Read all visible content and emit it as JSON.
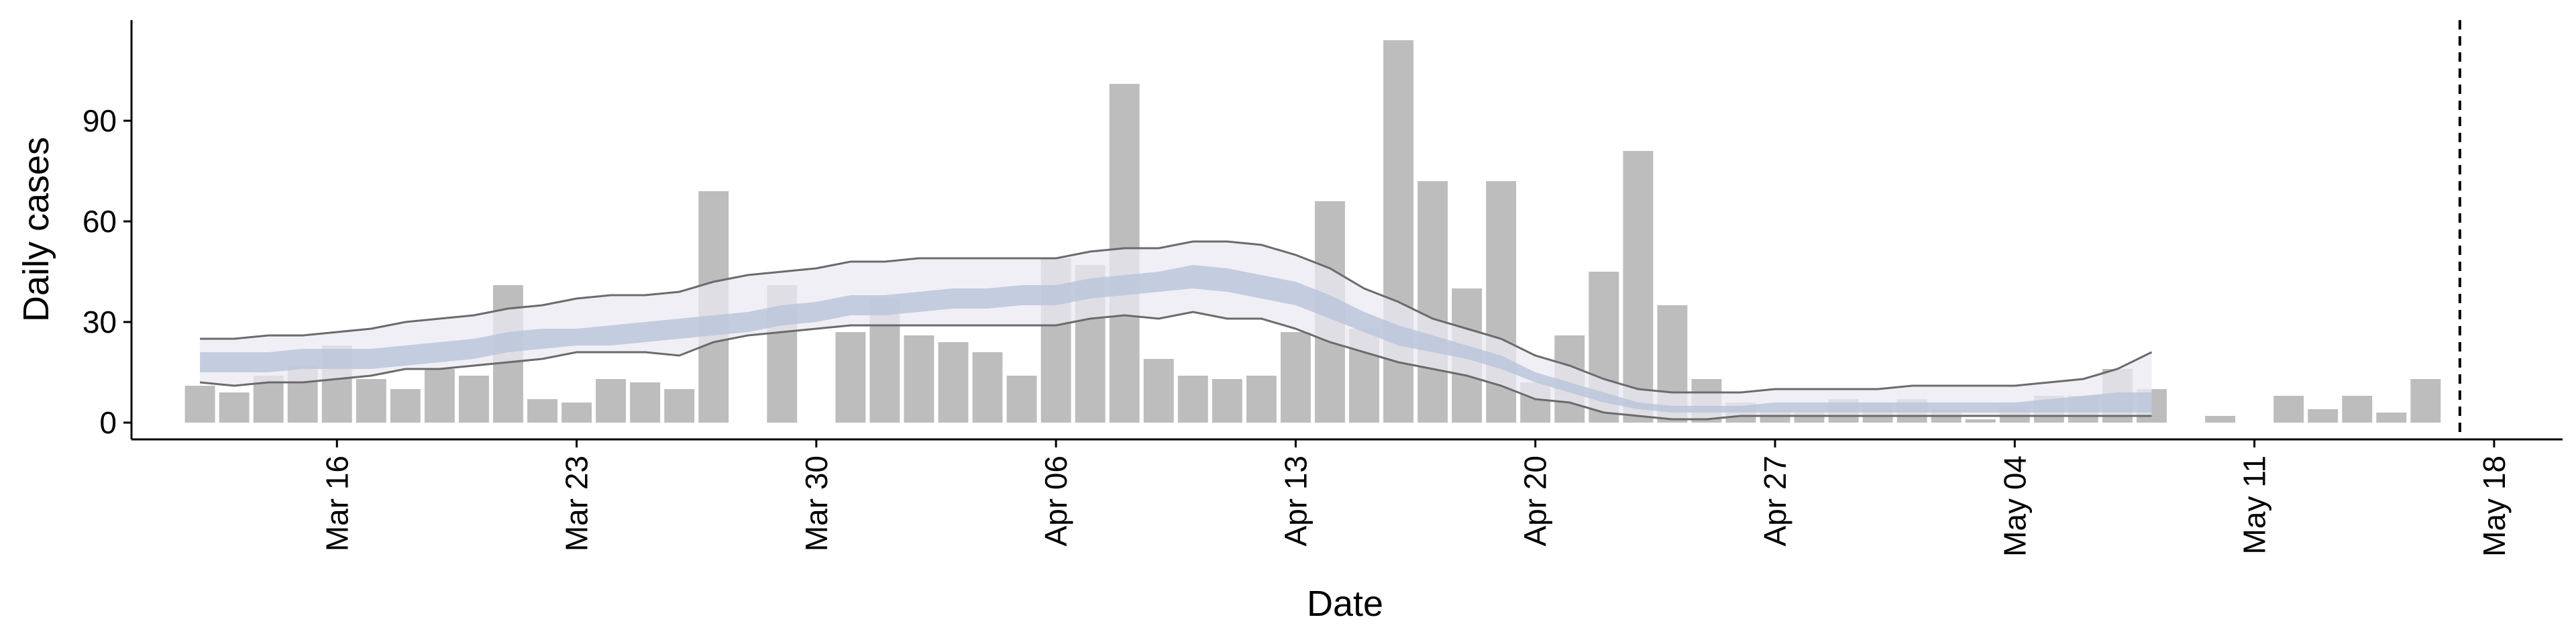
{
  "chart_data": {
    "type": "bar",
    "xlabel": "Date",
    "ylabel": "Daily cases",
    "x_axis": {
      "type": "date",
      "range": [
        "2020-03-10",
        "2020-05-20"
      ],
      "tick_labels": [
        "Mar 16",
        "Mar 23",
        "Mar 30",
        "Apr 06",
        "Apr 13",
        "Apr 20",
        "Apr 27",
        "May 04",
        "May 11",
        "May 18"
      ],
      "tick_dates": [
        "2020-03-16",
        "2020-03-23",
        "2020-03-30",
        "2020-04-06",
        "2020-04-13",
        "2020-04-20",
        "2020-04-27",
        "2020-05-04",
        "2020-05-11",
        "2020-05-18"
      ],
      "tick_label_rotation": 90
    },
    "y_axis": {
      "range": [
        -5,
        120
      ],
      "ticks": [
        0,
        30,
        60,
        90
      ],
      "tick_labels": [
        "0",
        "30",
        "60",
        "90"
      ]
    },
    "grid": false,
    "bar_color": "#bdbdbd",
    "band_outer_color": "#e9e9f2",
    "band_inner_color": "#b9c3d9",
    "line_color": "#6b6b6b",
    "vline_color": "#000000",
    "vline_date": "2020-05-17",
    "bars": {
      "dates": [
        "2020-03-12",
        "2020-03-13",
        "2020-03-14",
        "2020-03-15",
        "2020-03-16",
        "2020-03-17",
        "2020-03-18",
        "2020-03-19",
        "2020-03-20",
        "2020-03-21",
        "2020-03-22",
        "2020-03-23",
        "2020-03-24",
        "2020-03-25",
        "2020-03-26",
        "2020-03-27",
        "2020-03-28",
        "2020-03-29",
        "2020-03-30",
        "2020-03-31",
        "2020-04-01",
        "2020-04-02",
        "2020-04-03",
        "2020-04-04",
        "2020-04-05",
        "2020-04-06",
        "2020-04-07",
        "2020-04-08",
        "2020-04-09",
        "2020-04-10",
        "2020-04-11",
        "2020-04-12",
        "2020-04-13",
        "2020-04-14",
        "2020-04-15",
        "2020-04-16",
        "2020-04-17",
        "2020-04-18",
        "2020-04-19",
        "2020-04-20",
        "2020-04-21",
        "2020-04-22",
        "2020-04-23",
        "2020-04-24",
        "2020-04-25",
        "2020-04-26",
        "2020-04-27",
        "2020-04-28",
        "2020-04-29",
        "2020-04-30",
        "2020-05-01",
        "2020-05-02",
        "2020-05-03",
        "2020-05-04",
        "2020-05-05",
        "2020-05-06",
        "2020-05-07",
        "2020-05-08",
        "2020-05-09",
        "2020-05-10",
        "2020-05-11",
        "2020-05-12",
        "2020-05-13",
        "2020-05-14",
        "2020-05-15",
        "2020-05-16",
        "2020-05-17"
      ],
      "values": [
        11,
        9,
        14,
        17,
        23,
        13,
        10,
        16,
        14,
        41,
        7,
        6,
        13,
        12,
        10,
        69,
        0,
        41,
        0,
        27,
        37,
        26,
        24,
        21,
        14,
        49,
        47,
        101,
        19,
        14,
        13,
        14,
        27,
        66,
        28,
        114,
        72,
        40,
        72,
        12,
        26,
        45,
        81,
        35,
        13,
        6,
        3,
        3,
        7,
        6,
        7,
        4,
        1,
        5,
        8,
        8,
        16,
        10,
        0,
        2,
        0,
        8,
        4,
        8,
        3,
        13,
        0
      ]
    },
    "series": [
      {
        "dates": [
          "2020-03-12",
          "2020-03-13",
          "2020-03-14",
          "2020-03-15",
          "2020-03-16",
          "2020-03-17",
          "2020-03-18",
          "2020-03-19",
          "2020-03-20",
          "2020-03-21",
          "2020-03-22",
          "2020-03-23",
          "2020-03-24",
          "2020-03-25",
          "2020-03-26",
          "2020-03-27",
          "2020-03-28",
          "2020-03-29",
          "2020-03-30",
          "2020-03-31",
          "2020-04-01",
          "2020-04-02",
          "2020-04-03",
          "2020-04-04",
          "2020-04-05",
          "2020-04-06",
          "2020-04-07",
          "2020-04-08",
          "2020-04-09",
          "2020-04-10",
          "2020-04-11",
          "2020-04-12",
          "2020-04-13",
          "2020-04-14",
          "2020-04-15",
          "2020-04-16",
          "2020-04-17",
          "2020-04-18",
          "2020-04-19",
          "2020-04-20",
          "2020-04-21",
          "2020-04-22",
          "2020-04-23",
          "2020-04-24",
          "2020-04-25",
          "2020-04-26",
          "2020-04-27",
          "2020-04-28",
          "2020-04-29",
          "2020-04-30",
          "2020-05-01",
          "2020-05-02",
          "2020-05-03",
          "2020-05-04",
          "2020-05-05",
          "2020-05-06",
          "2020-05-07",
          "2020-05-08"
        ],
        "upper_90": [
          25,
          25,
          26,
          26,
          27,
          28,
          30,
          31,
          32,
          34,
          35,
          37,
          38,
          38,
          39,
          42,
          44,
          45,
          46,
          48,
          48,
          49,
          49,
          49,
          49,
          49,
          51,
          52,
          52,
          54,
          54,
          53,
          50,
          46,
          40,
          36,
          31,
          28,
          25,
          20,
          17,
          13,
          10,
          9,
          9,
          9,
          10,
          10,
          10,
          10,
          11,
          11,
          11,
          11,
          12,
          13,
          16,
          21
        ],
        "upper_50": [
          21,
          21,
          21,
          22,
          22,
          22,
          23,
          24,
          25,
          27,
          28,
          28,
          29,
          30,
          31,
          32,
          33,
          35,
          36,
          38,
          38,
          39,
          40,
          40,
          41,
          41,
          43,
          44,
          45,
          47,
          46,
          44,
          42,
          38,
          33,
          29,
          26,
          23,
          20,
          15,
          12,
          9,
          6,
          5,
          5,
          5,
          6,
          6,
          6,
          6,
          6,
          6,
          6,
          6,
          7,
          8,
          9,
          9
        ],
        "lower_50": [
          15,
          15,
          15,
          16,
          16,
          16,
          17,
          18,
          19,
          21,
          22,
          23,
          23,
          24,
          25,
          26,
          27,
          29,
          30,
          32,
          32,
          33,
          34,
          34,
          35,
          35,
          37,
          38,
          39,
          40,
          39,
          37,
          35,
          31,
          27,
          23,
          21,
          19,
          16,
          12,
          9,
          6,
          4,
          3,
          3,
          3,
          3,
          3,
          3,
          3,
          3,
          3,
          3,
          3,
          3,
          3,
          3,
          3
        ],
        "lower_90": [
          12,
          11,
          12,
          12,
          13,
          14,
          16,
          16,
          17,
          18,
          19,
          21,
          21,
          21,
          20,
          24,
          26,
          27,
          28,
          29,
          29,
          29,
          29,
          29,
          29,
          29,
          31,
          32,
          31,
          33,
          31,
          31,
          28,
          24,
          21,
          18,
          16,
          14,
          11,
          7,
          6,
          3,
          2,
          1,
          1,
          2,
          2,
          2,
          2,
          2,
          2,
          2,
          2,
          2,
          2,
          2,
          2,
          2
        ]
      }
    ]
  }
}
